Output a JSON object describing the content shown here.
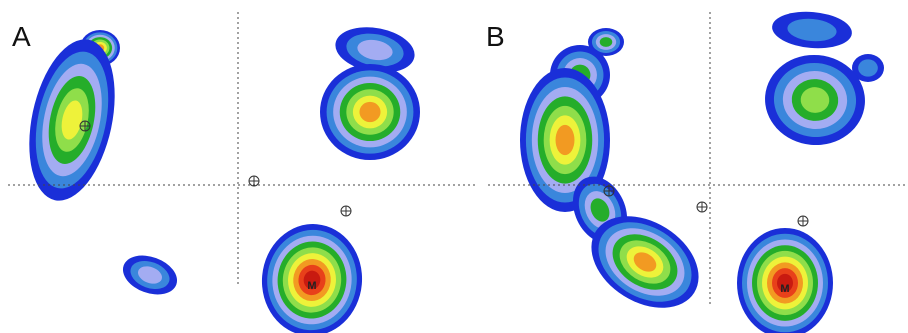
{
  "panels": [
    {
      "label": "A",
      "marker": "M"
    },
    {
      "label": "B",
      "marker": "M"
    }
  ]
}
